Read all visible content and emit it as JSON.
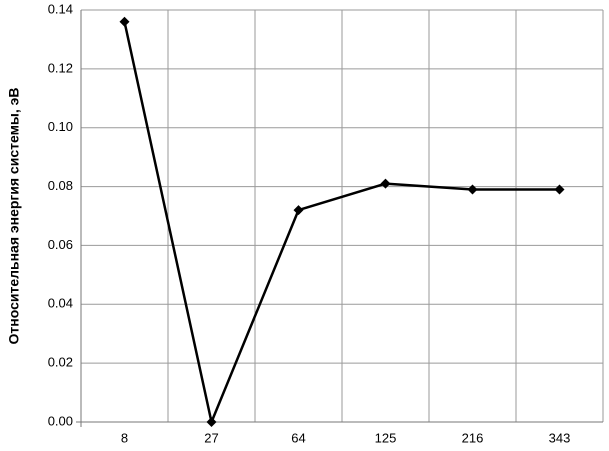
{
  "chart_data": {
    "type": "line",
    "y_label": "Относительная энергия системы, эВ",
    "categories": [
      "8",
      "27",
      "64",
      "125",
      "216",
      "343"
    ],
    "values": [
      0.136,
      0.0,
      0.072,
      0.081,
      0.079,
      0.079
    ],
    "color": "#000000",
    "ylim": [
      0,
      0.14
    ],
    "yticks": [
      {
        "value": 0,
        "label": "0.00"
      },
      0.02,
      0.04,
      0.06,
      0.08,
      {
        "value": 0.1,
        "label": "0.10"
      },
      0.12,
      0.14
    ],
    "grid": true
  }
}
